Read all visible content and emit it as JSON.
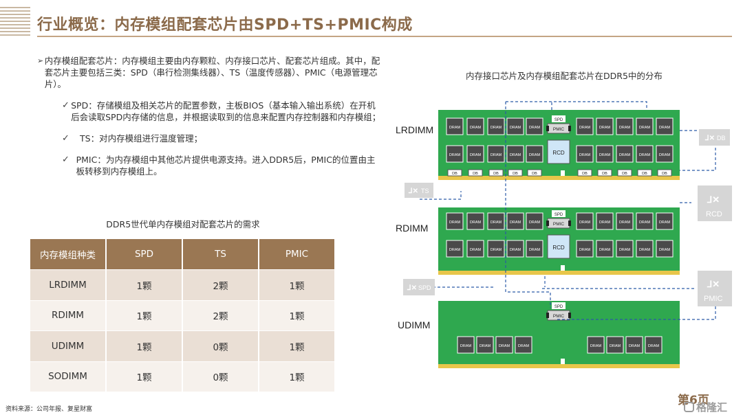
{
  "title": "行业概览：内存模组配套芯片由SPD+TS+PMIC构成",
  "bullets": {
    "main_marker": "➢",
    "main_text": "内存模组配套芯片：内存模组主要由内存颗粒、内存接口芯片、配套芯片组成。其中，配套芯片主要包括三类：SPD（串行检测集线器）、TS（温度传感器）、PMIC（电源管理芯片）。",
    "sub_marker": "✓",
    "sub": [
      "SPD：存储模组及相关芯片的配置参数，主板BIOS（基本输入输出系统）在开机后会读取SPD内存储的信息，并根据读取到的信息来配置内存控制器和内存模组；",
      "TS：对内存模组进行温度管理；",
      "PMIC：为内存模组中其他芯片提供电源支持。进入DDR5后，PMIC的位置由主板转移到内存模组上。"
    ]
  },
  "table": {
    "caption": "DDR5世代单内存模组对配套芯片的需求",
    "headers": [
      "内存模组种类",
      "SPD",
      "TS",
      "PMIC"
    ],
    "rows": [
      [
        "LRDIMM",
        "1颗",
        "2颗",
        "1颗"
      ],
      [
        "RDIMM",
        "1颗",
        "2颗",
        "1颗"
      ],
      [
        "UDIMM",
        "1颗",
        "0颗",
        "1颗"
      ],
      [
        "SODIMM",
        "1颗",
        "0颗",
        "1颗"
      ]
    ]
  },
  "figure": {
    "title": "内存接口芯片及内存模组配套芯片在DDR5中的分布",
    "modules": [
      "LRDIMM",
      "RDIMM",
      "UDIMM"
    ],
    "chip_dram": "DRAM",
    "chip_db": "DB",
    "chip_spd": "SPD",
    "chip_pmic": "PMIC",
    "chip_rcd": "RCD",
    "legend_db": "DB",
    "legend_ts": "TS",
    "legend_rcd": "RCD",
    "legend_spd": "SPD",
    "legend_pmic": "PMIC",
    "colors": {
      "pcb": "#2fa84f",
      "chip": "#4a4a4a",
      "rcd": "#cfe6f7",
      "line": "#2b5aa8",
      "accent": "#9a7753"
    }
  },
  "source": "资料来源：公司年报、复星财富",
  "page_number": "第6页",
  "watermark": "格隆汇"
}
